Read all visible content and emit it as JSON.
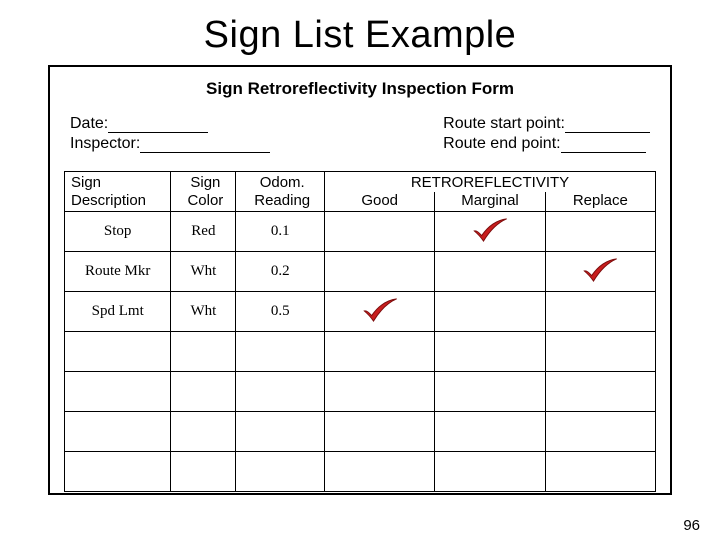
{
  "title": "Sign List Example",
  "form_title": "Sign Retroreflectivity Inspection Form",
  "header": {
    "date_label": "Date:",
    "inspector_label": "Inspector:",
    "route_start_label": "Route start point:",
    "route_end_label": "Route end point:"
  },
  "table": {
    "columns": {
      "sign_description": "Sign\nDescription",
      "sign_color": "Sign\nColor",
      "odom_reading": "Odom.\nReading",
      "retro_group": "RETROREFLECTIVITY",
      "good": "Good",
      "marginal": "Marginal",
      "replace": "Replace"
    },
    "rows": [
      {
        "desc": "Stop",
        "color": "Red",
        "odom": "0.1",
        "good": "",
        "marginal": "✓",
        "replace": ""
      },
      {
        "desc": "Route Mkr",
        "color": "Wht",
        "odom": "0.2",
        "good": "",
        "marginal": "",
        "replace": "✓"
      },
      {
        "desc": "Spd Lmt",
        "color": "Wht",
        "odom": "0.5",
        "good": "✓",
        "marginal": "",
        "replace": ""
      },
      {
        "desc": "",
        "color": "",
        "odom": "",
        "good": "",
        "marginal": "",
        "replace": ""
      },
      {
        "desc": "",
        "color": "",
        "odom": "",
        "good": "",
        "marginal": "",
        "replace": ""
      },
      {
        "desc": "",
        "color": "",
        "odom": "",
        "good": "",
        "marginal": "",
        "replace": ""
      },
      {
        "desc": "",
        "color": "",
        "odom": "",
        "good": "",
        "marginal": "",
        "replace": ""
      }
    ],
    "check_color": "#c81e1e",
    "check_svg_viewbox": "0 0 40 28"
  },
  "page_number": "96",
  "colors": {
    "background": "#ffffff",
    "border": "#000000",
    "text": "#000000"
  }
}
